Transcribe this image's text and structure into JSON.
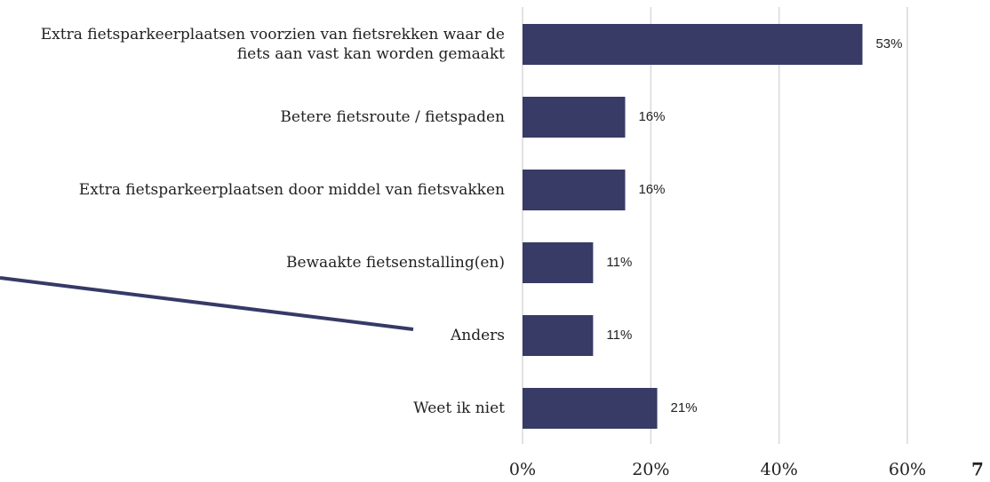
{
  "chart_data": {
    "type": "bar",
    "orientation": "horizontal",
    "categories": [
      "Extra fietsparkeerplaatsen voorzien van fietsrekken waar de fiets aan vast kan worden gemaakt",
      "Betere fietsroute / fietspaden",
      "Extra fietsparkeerplaatsen door middel van fietsvakken",
      "Bewaakte fietsenstalling(en)",
      "Anders",
      "Weet ik niet"
    ],
    "values": [
      53,
      16,
      16,
      11,
      11,
      21
    ],
    "value_labels": [
      "53%",
      "16%",
      "16%",
      "11%",
      "11%",
      "21%"
    ],
    "color": "#373b65",
    "xlim": [
      0,
      60
    ],
    "xticks": [
      {
        "value": 0,
        "label": "0%"
      },
      {
        "value": 20,
        "label": "20%"
      },
      {
        "value": 40,
        "label": "40%"
      },
      {
        "value": 60,
        "label": "60%"
      }
    ],
    "grid": true
  },
  "page_number": "7"
}
